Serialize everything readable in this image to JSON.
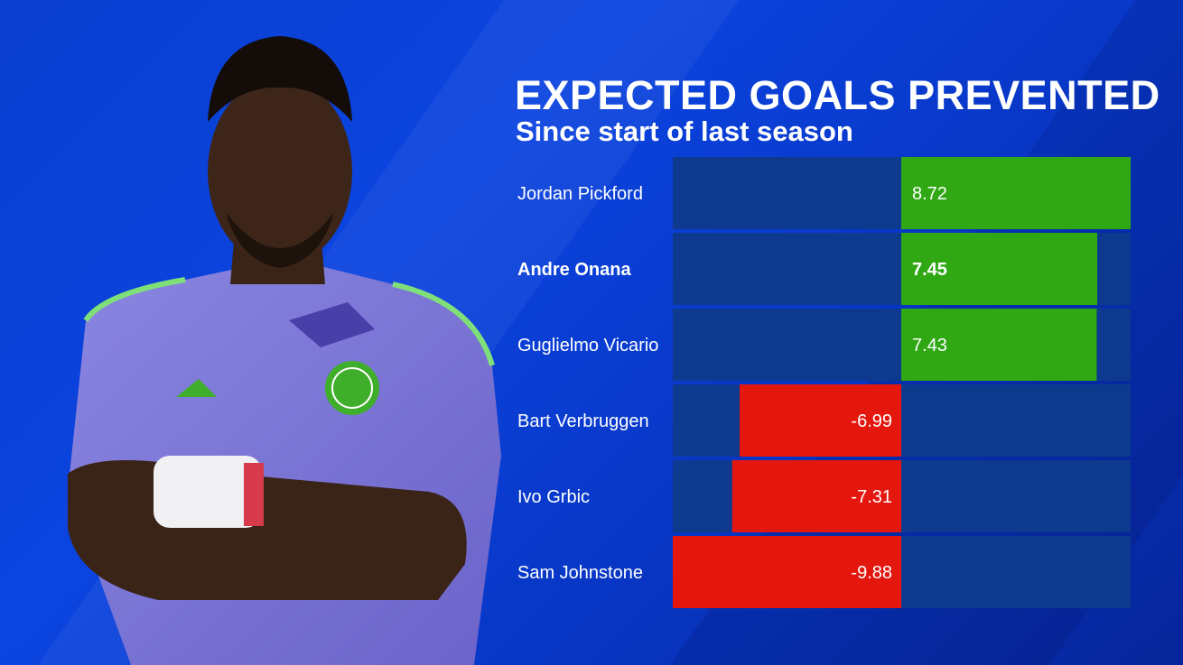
{
  "header": {
    "title": "EXPECTED GOALS PREVENTED",
    "subtitle": "Since start of last season"
  },
  "colors": {
    "background": "#0a3fd0",
    "track": "#0d3a8f",
    "positive": "#2fa814",
    "negative": "#e4170f",
    "text": "#ffffff"
  },
  "chart_data": {
    "type": "bar",
    "orientation": "horizontal",
    "title": "EXPECTED GOALS PREVENTED",
    "subtitle": "Since start of last season",
    "categories": [
      "Jordan Pickford",
      "Andre Onana",
      "Guglielmo Vicario",
      "Bart Verbruggen",
      "Ivo Grbic",
      "Sam Johnstone"
    ],
    "values": [
      8.72,
      7.45,
      7.43,
      -6.99,
      -7.31,
      -9.88
    ],
    "value_labels": [
      "8.72",
      "7.45",
      "7.43",
      "-6.99",
      "-7.31",
      "-9.88"
    ],
    "highlight": "Andre Onana",
    "xlim": [
      -10,
      10
    ],
    "grid": false,
    "legend": "none"
  }
}
